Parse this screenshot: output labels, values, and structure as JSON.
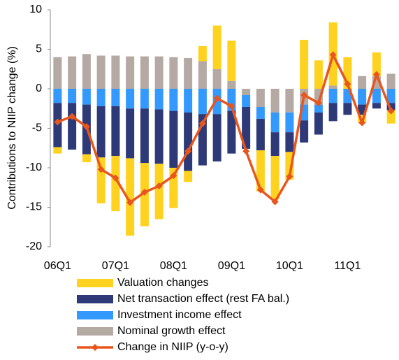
{
  "chart_data": {
    "type": "bar",
    "stacked": true,
    "y_label": "Contributions to NIIP change (%)",
    "categories": [
      "06Q1",
      null,
      null,
      null,
      "07Q1",
      null,
      null,
      null,
      "08Q1",
      null,
      null,
      null,
      "09Q1",
      null,
      null,
      null,
      "10Q1",
      null,
      null,
      null,
      "11Q1",
      null,
      null,
      null
    ],
    "ylim": [
      -20,
      10
    ],
    "yticks": [
      10,
      5,
      0,
      -5,
      -10,
      -15,
      -20
    ],
    "series": [
      {
        "name": "Valuation changes",
        "color": "#FFD21F",
        "type": "bar",
        "values": [
          -0.8,
          0,
          -1.0,
          -5.8,
          -7.0,
          -9.8,
          -8.0,
          -7.0,
          -5.1,
          -1.4,
          1.9,
          5.5,
          5.1,
          0,
          -5.2,
          -5.5,
          -3.5,
          6.2,
          3.6,
          8.0,
          4.0,
          -1.0,
          3.0,
          -1.7
        ]
      },
      {
        "name": "Net transaction effect (rest FA bal.)",
        "color": "#2E3A78",
        "type": "bar",
        "values": [
          -5.6,
          -5.9,
          -6.3,
          -6.5,
          -6.3,
          -6.3,
          -6.9,
          -6.9,
          -7.2,
          -7.4,
          -6.5,
          -6.0,
          -5.4,
          -5.3,
          -4.0,
          -3.0,
          -2.5,
          -2.8,
          -2.8,
          -2.3,
          -1.5,
          -1.3,
          -0.7,
          -0.9
        ]
      },
      {
        "name": "Investment income effect",
        "color": "#3399FF",
        "type": "bar",
        "values": [
          -1.8,
          -1.8,
          -2.0,
          -2.2,
          -2.2,
          -2.5,
          -2.5,
          -2.6,
          -2.8,
          -3.0,
          -3.2,
          -3.2,
          -2.8,
          -1.5,
          -1.5,
          -2.5,
          -2.5,
          -2.0,
          -1.0,
          -1.8,
          -1.8,
          -2.0,
          -1.8,
          -1.8
        ]
      },
      {
        "name": "Nominal growth effect",
        "color": "#B5A9A4",
        "type": "bar",
        "values": [
          4.0,
          4.1,
          4.4,
          4.2,
          4.2,
          4.1,
          4.1,
          4.1,
          4.0,
          3.9,
          3.5,
          2.5,
          1.0,
          -0.8,
          -2.3,
          -3.0,
          -3.0,
          -2.0,
          -2.0,
          0.4,
          0,
          1.6,
          1.6,
          1.9
        ]
      },
      {
        "name": "Change in NIIP (y-o-y)",
        "color": "#E8561E",
        "type": "line",
        "values": [
          -4.2,
          -3.5,
          -4.8,
          -10.2,
          -11.3,
          -14.4,
          -13.1,
          -12.3,
          -11.0,
          -7.9,
          -4.4,
          -1.2,
          -2.2,
          -7.9,
          -12.8,
          -14.3,
          -11.1,
          -0.8,
          -1.8,
          4.3,
          0.6,
          -4.3,
          1.8,
          -2.8
        ]
      }
    ]
  }
}
